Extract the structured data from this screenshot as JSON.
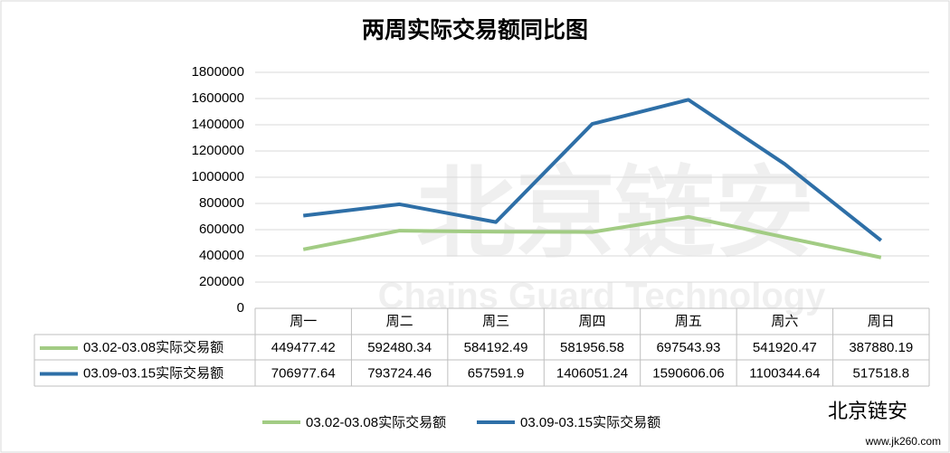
{
  "chart_data": {
    "type": "line",
    "title": "两周实际交易额同比图",
    "categories": [
      "周一",
      "周二",
      "周三",
      "周四",
      "周五",
      "周六",
      "周日"
    ],
    "series": [
      {
        "name": "03.02-03.08实际交易额",
        "color": "#a2cc84",
        "values": [
          449477.42,
          592480.34,
          584192.49,
          581956.58,
          697543.93,
          541920.47,
          387880.19
        ]
      },
      {
        "name": "03.09-03.15实际交易额",
        "color": "#2e6fa7",
        "values": [
          706977.64,
          793724.46,
          657591.9,
          1406051.24,
          1590606.06,
          1100344.64,
          517518.8
        ]
      }
    ],
    "ylim": [
      0,
      1800000
    ],
    "yticks": [
      0,
      200000,
      400000,
      600000,
      800000,
      1000000,
      1200000,
      1400000,
      1600000,
      1800000
    ],
    "grid": true,
    "legend": "bottom",
    "data_table": true,
    "watermark": [
      "北京链安",
      "Chains Guard Technology"
    ],
    "logo_text": "北京链安",
    "logo_url": "www.jk260.com"
  }
}
